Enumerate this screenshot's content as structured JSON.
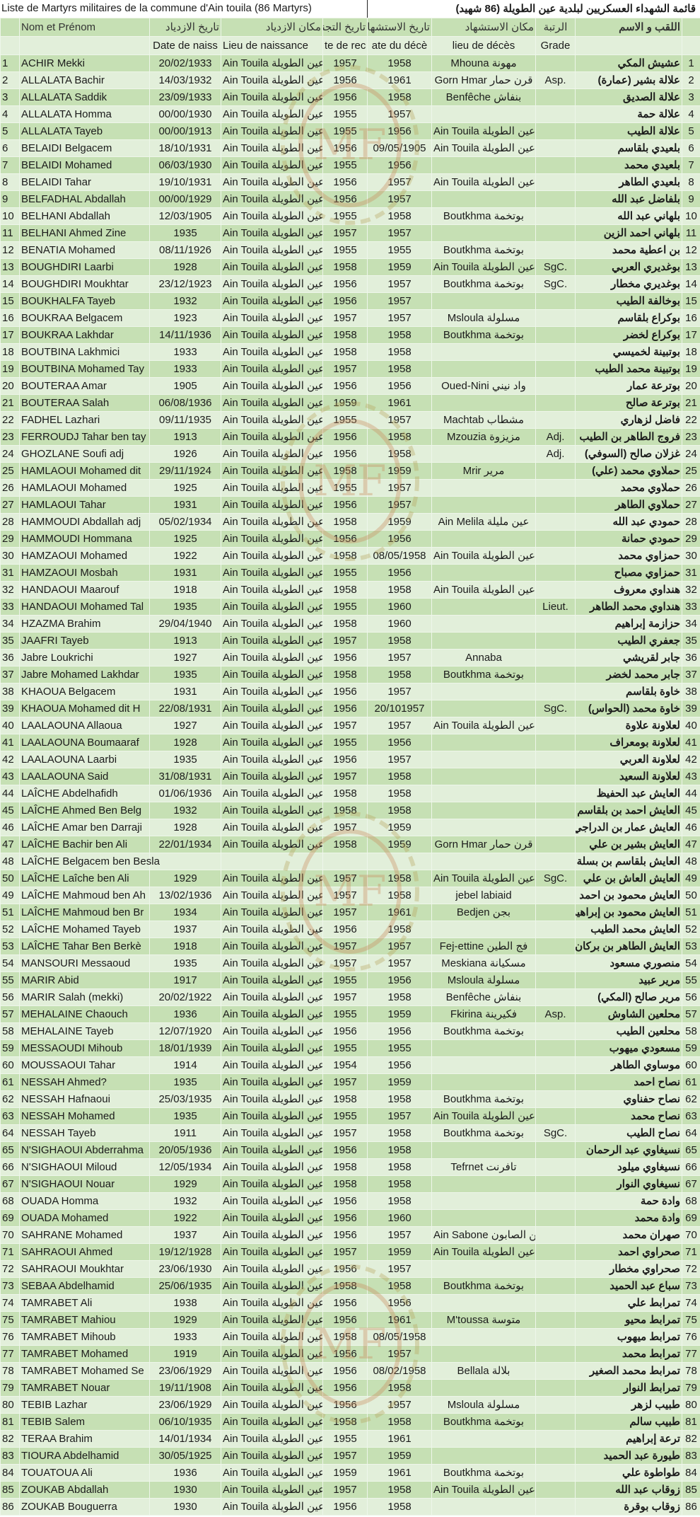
{
  "title": {
    "fr": "Liste de Martyrs militaires de la commune d'Ain touila (86 Martyrs)",
    "ar": "قائمة الشهداء العسكريين لبلدية عين الطويلة (86 شهيد)"
  },
  "header_ar": [
    "",
    "Nom et Prénom",
    "تاريخ الازدياد",
    "مكان الازدياد",
    "تاريخ التجنيد",
    "تاريخ الاستشهاد",
    "مكان الاستشهاد",
    "الرتبة",
    "اللقب و الاسم",
    ""
  ],
  "header_fr": [
    "",
    "",
    "Date de naiss",
    "Lieu de naissance",
    "te de rec",
    "ate du décè",
    "lieu de décès",
    "Grade",
    "",
    ""
  ],
  "colors": {
    "row_dark": "#c6e0b4",
    "row_light": "#e2efda"
  },
  "watermark": "ornamental-circle-logo",
  "rows": [
    [
      "1",
      "ACHIR Mekki",
      "20/02/1933",
      "Ain Touila عين الطويلة",
      "1957",
      "1958",
      "Mhouna مهونة",
      "",
      "عشيش المكي",
      "1"
    ],
    [
      "2",
      "ALLALATA Bachir",
      "14/03/1932",
      "Ain Touila عين الطويلة",
      "1956",
      "1961",
      "Gorn Hmar قرن حمار",
      "Asp.",
      "علالة بشير (عمارة)",
      "2"
    ],
    [
      "3",
      "ALLALATA Saddik",
      "23/09/1933",
      "Ain Touila عين الطويلة",
      "1956",
      "1958",
      "Benfêche بنفاش",
      "",
      "علالة الصديق",
      "3"
    ],
    [
      "4",
      "ALLALATA Homma",
      "00/00/1930",
      "Ain Touila عين الطويلة",
      "1955",
      "1957",
      "",
      "",
      "علالة حمة",
      "4"
    ],
    [
      "5",
      "ALLALATA Tayeb",
      "00/00/1913",
      "Ain Touila عين الطويلة",
      "1955",
      "1956",
      "Ain Touila عين الطويلة",
      "",
      "علالة الطيب",
      "5"
    ],
    [
      "6",
      "BELAIDI Belgacem",
      "18/10/1931",
      "Ain Touila عين الطويلة",
      "1956",
      "09/05/1905",
      "Ain Touila عين الطويلة",
      "",
      "بلعيدي بلقاسم",
      "6"
    ],
    [
      "7",
      "BELAIDI Mohamed",
      "06/03/1930",
      "Ain Touila عين الطويلة",
      "1955",
      "1956",
      "",
      "",
      "بلعيدي محمد",
      "7"
    ],
    [
      "8",
      "BELAIDI Tahar",
      "19/10/1931",
      "Ain Touila عين الطويلة",
      "1956",
      "1957",
      "Ain Touila عين الطويلة",
      "",
      "بلعيدي الطاهر",
      "8"
    ],
    [
      "9",
      "BELFADHAL Abdallah",
      "00/00/1929",
      "Ain Touila عين الطويلة",
      "1956",
      "1957",
      "",
      "",
      "بلفاضل عبد الله",
      "9"
    ],
    [
      "10",
      "BELHANI Abdallah",
      "12/03/1905",
      "Ain Touila عين الطويلة",
      "1955",
      "1958",
      "Boutkhma بوتخمة",
      "",
      "بلهاني عبد الله",
      "10"
    ],
    [
      "11",
      "BELHANI Ahmed Zine",
      "1935",
      "Ain Touila عين الطويلة",
      "1957",
      "1957",
      "",
      "",
      "بلهاني احمد الزين",
      "11"
    ],
    [
      "12",
      "BENATIA Mohamed",
      "08/11/1926",
      "Ain Touila عين الطويلة",
      "1955",
      "1955",
      "Boutkhma بوتخمة",
      "",
      "بن اعطية محمد",
      "12"
    ],
    [
      "13",
      "BOUGHDIRI Laarbi",
      "1928",
      "Ain Touila عين الطويلة",
      "1958",
      "1959",
      "Ain Touila عين الطويلة",
      "SgC.",
      "بوغديري العربي",
      "13"
    ],
    [
      "14",
      "BOUGHDIRI Moukhtar",
      "23/12/1923",
      "Ain Touila عين الطويلة",
      "1956",
      "1957",
      "Boutkhma بوتخمة",
      "SgC.",
      "بوغديري مخطار",
      "14"
    ],
    [
      "15",
      "BOUKHALFA Tayeb",
      "1932",
      "Ain Touila عين الطويلة",
      "1956",
      "1957",
      "",
      "",
      "بوخالفة الطيب",
      "15"
    ],
    [
      "16",
      "BOUKRAA Belgacem",
      "1923",
      "Ain Touila عين الطويلة",
      "1957",
      "1957",
      "Msloula مسلولة",
      "",
      "بوكراع بلقاسم",
      "16"
    ],
    [
      "17",
      "BOUKRAA Lakhdar",
      "14/11/1936",
      "Ain Touila عين الطويلة",
      "1958",
      "1958",
      "Boutkhma بوتخمة",
      "",
      "بوكراع لخضر",
      "17"
    ],
    [
      "18",
      "BOUTBINA Lakhmici",
      "1933",
      "Ain Touila عين الطويلة",
      "1958",
      "1958",
      "",
      "",
      "بوتبينة لخميسي",
      "18"
    ],
    [
      "19",
      "BOUTBINA Mohamed Tay",
      "1933",
      "Ain Touila عين الطويلة",
      "1957",
      "1958",
      "",
      "",
      "بوتبينة محمد الطيب",
      "19"
    ],
    [
      "20",
      "BOUTERAA Amar",
      "1905",
      "Ain Touila عين الطويلة",
      "1956",
      "1956",
      "Oued-Nini واد نيني",
      "",
      "بوترعة عمار",
      "20"
    ],
    [
      "21",
      "BOUTERAA Salah",
      "06/08/1936",
      "Ain Touila عين الطويلة",
      "1959",
      "1961",
      "",
      "",
      "بوترعة صالح",
      "21"
    ],
    [
      "22",
      "FADHEL Lazhari",
      "09/11/1935",
      "Ain Touila عين الطويلة",
      "1955",
      "1957",
      "Machtab مشطاب",
      "",
      "فاضل لزهاري",
      "22"
    ],
    [
      "23",
      "FERROUDJ Tahar ben tay",
      "1913",
      "Ain Touila عين الطويلة",
      "1956",
      "1958",
      "Mzouzia مزيزوة",
      "Adj.",
      "فروج الطاهر بن الطيب",
      "23"
    ],
    [
      "24",
      "GHOZLANE Soufi adj",
      "1926",
      "Ain Touila عين الطويلة",
      "1956",
      "1958",
      "",
      "Adj.",
      "غزلان صالح (السوفي)",
      "24"
    ],
    [
      "25",
      "HAMLAOUI Mohamed dit",
      "29/11/1924",
      "Ain Touila عين الطويلة",
      "1958",
      "1959",
      "Mrir مرير",
      "",
      "حملاوي محمد (علي)",
      "25"
    ],
    [
      "26",
      "HAMLAOUI Mohamed",
      "1925",
      "Ain Touila عين الطويلة",
      "1955",
      "1957",
      "",
      "",
      "حملاوي محمد",
      "26"
    ],
    [
      "27",
      "HAMLAOUI Tahar",
      "1931",
      "Ain Touila عين الطويلة",
      "1956",
      "1957",
      "",
      "",
      "حملاوي الطاهر",
      "27"
    ],
    [
      "28",
      "HAMMOUDI Abdallah adj",
      "05/02/1934",
      "Ain Touila عين الطويلة",
      "1958",
      "1959",
      "Ain Melila عين مليلة",
      "",
      "حمودي عبد الله",
      "28"
    ],
    [
      "29",
      "HAMMOUDI Hommana",
      "1925",
      "Ain Touila عين الطويلة",
      "1956",
      "1956",
      "",
      "",
      "حمودي حمانة",
      "29"
    ],
    [
      "30",
      "HAMZAOUI Mohamed",
      "1922",
      "Ain Touila عين الطويلة",
      "1958",
      "08/05/1958",
      "Ain Touila عين الطويلة",
      "",
      "حمزاوي محمد",
      "30"
    ],
    [
      "31",
      "HAMZAOUI Mosbah",
      "1931",
      "Ain Touila عين الطويلة",
      "1955",
      "1956",
      "",
      "",
      "حمزاوي مصباح",
      "31"
    ],
    [
      "32",
      "HANDAOUI Maarouf",
      "1918",
      "Ain Touila عين الطويلة",
      "1958",
      "1958",
      "Ain Touila عين الطويلة",
      "",
      "هنداوي معروف",
      "32"
    ],
    [
      "33",
      "HANDAOUI Mohamed Tal",
      "1935",
      "Ain Touila عين الطويلة",
      "1955",
      "1960",
      "",
      "Lieut.",
      "هنداوي محمد الطاهر",
      "33"
    ],
    [
      "34",
      "HZAZMA Brahim",
      "29/04/1940",
      "Ain Touila عين الطويلة",
      "1958",
      "1960",
      "",
      "",
      "حزازمة إبراهيم",
      "34"
    ],
    [
      "35",
      "JAAFRI Tayeb",
      "1913",
      "Ain Touila عين الطويلة",
      "1957",
      "1958",
      "",
      "",
      "جعفري الطيب",
      "35"
    ],
    [
      "36",
      "Jabre Loukrichi",
      "1927",
      "Ain Touila عين الطويلة",
      "1956",
      "1957",
      "Annaba",
      "",
      "جابر لقريشي",
      "36"
    ],
    [
      "37",
      "Jabre Mohamed Lakhdar",
      "1935",
      "Ain Touila عين الطويلة",
      "1958",
      "1958",
      "Boutkhma بوتخمة",
      "",
      "جابر محمد لخضر",
      "37"
    ],
    [
      "38",
      "KHAOUA Belgacem",
      "1931",
      "Ain Touila عين الطويلة",
      "1956",
      "1957",
      "",
      "",
      "خاوة بلقاسم",
      "38"
    ],
    [
      "39",
      "KHAOUA Mohamed dit H",
      "22/08/1931",
      "Ain Touila عين الطويلة",
      "1956",
      "20/101957",
      "",
      "SgC.",
      "خاوة محمد (الحواس)",
      "39"
    ],
    [
      "40",
      "LAALAOUNA Allaoua",
      "1927",
      "Ain Touila عين الطويلة",
      "1957",
      "1957",
      "Ain Touila عين الطويلة",
      "",
      "لعلاونة علاوة",
      "40"
    ],
    [
      "41",
      "LAALAOUNA Boumaaraf",
      "1928",
      "Ain Touila عين الطويلة",
      "1955",
      "1956",
      "",
      "",
      "لعلاونة بومعراف",
      "41"
    ],
    [
      "42",
      "LAALAOUNA Laarbi",
      "1935",
      "Ain Touila عين الطويلة",
      "1956",
      "1957",
      "",
      "",
      "لعلاونة العربي",
      "42"
    ],
    [
      "43",
      "LAALAOUNA Said",
      "31/08/1931",
      "Ain Touila عين الطويلة",
      "1957",
      "1958",
      "",
      "",
      "لعلاونة السعيد",
      "43"
    ],
    [
      "44",
      "LAÎCHE Abdelhafidh",
      "01/06/1936",
      "Ain Touila عين الطويلة",
      "1958",
      "1958",
      "",
      "",
      "العايش عبد الحفيظ",
      "44"
    ],
    [
      "45",
      "LAÎCHE Ahmed Ben Belg",
      "1932",
      "Ain Touila عين الطويلة",
      "1958",
      "1958",
      "",
      "",
      "العايش احمد بن بلقاسم",
      "45"
    ],
    [
      "46",
      "LAÎCHE Amar ben Darraji",
      "1928",
      "Ain Touila عين الطويلة",
      "1957",
      "1959",
      "",
      "",
      "العايش عمار بن الدراجي",
      "46"
    ],
    [
      "47",
      "LAÎCHE Bachir ben Ali",
      "22/01/1934",
      "Ain Touila عين الطويلة",
      "1958",
      "1959",
      "Gorn Hmar قرن حمار",
      "",
      "العايش بشير بن علي",
      "47"
    ],
    [
      "48",
      "LAÎCHE Belgacem ben Besla",
      "",
      "",
      "",
      "",
      "",
      "",
      "العايش بلقاسم بن بسلة",
      "48"
    ],
    [
      "50",
      "LAÎCHE Laîche ben Ali",
      "1929",
      "Ain Touila عين الطويلة",
      "1957",
      "1958",
      "Ain Touila عين الطويلة",
      "SgC.",
      "العايش العاش بن علي",
      "49"
    ],
    [
      "49",
      "LAÎCHE Mahmoud ben Ah",
      "13/02/1936",
      "Ain Touila عين الطويلة",
      "1957",
      "1958",
      "jebel labiaid",
      "",
      "العايش محمود بن احمد",
      "50"
    ],
    [
      "51",
      "LAÎCHE Mahmoud ben Br",
      "1934",
      "Ain Touila عين الطويلة",
      "1957",
      "1961",
      "Bedjen بجن",
      "",
      "العايش محمود بن إبراهيم",
      "51"
    ],
    [
      "52",
      "LAÎCHE Mohamed Tayeb",
      "1937",
      "Ain Touila عين الطويلة",
      "1956",
      "1958",
      "",
      "",
      "العايش محمد الطيب",
      "52"
    ],
    [
      "53",
      "LAÎCHE Tahar Ben Berkè",
      "1918",
      "Ain Touila عين الطويلة",
      "1957",
      "1957",
      "Fej-ettine فج الطين",
      "",
      "العايش الطاهر بن بركان",
      "53"
    ],
    [
      "54",
      "MANSOURI Messaoud",
      "1935",
      "Ain Touila عين الطويلة",
      "1957",
      "1957",
      "Meskiana مسكيانة",
      "",
      "منصوري مسعود",
      "54"
    ],
    [
      "55",
      "MARIR Abid",
      "1917",
      "Ain Touila عين الطويلة",
      "1955",
      "1956",
      "Msloula مسلولة",
      "",
      "مرير عبيد",
      "55"
    ],
    [
      "56",
      "MARIR Salah (mekki)",
      "20/02/1922",
      "Ain Touila عين الطويلة",
      "1957",
      "1958",
      "Benfêche بنفاش",
      "",
      "مرير صالح (المكي)",
      "56"
    ],
    [
      "57",
      "MEHALAINE Chaouch",
      "1936",
      "Ain Touila عين الطويلة",
      "1955",
      "1959",
      "Fkirina فكيرينة",
      "Asp.",
      "محلعين الشاوش",
      "57"
    ],
    [
      "58",
      "MEHALAINE Tayeb",
      "12/07/1920",
      "Ain Touila عين الطويلة",
      "1956",
      "1956",
      "Boutkhma بوتخمة",
      "",
      "محلعين الطيب",
      "58"
    ],
    [
      "59",
      "MESSAOUDI Mihoub",
      "18/01/1939",
      "Ain Touila عين الطويلة",
      "1955",
      "1955",
      "",
      "",
      "مسعودي ميهوب",
      "59"
    ],
    [
      "60",
      "MOUSSAOUI Tahar",
      "1914",
      "Ain Touila عين الطويلة",
      "1954",
      "1956",
      "",
      "",
      "موساوي الطاهر",
      "60"
    ],
    [
      "61",
      "NESSAH Ahmed?",
      "1935",
      "Ain Touila عين الطويلة",
      "1957",
      "1959",
      "",
      "",
      "نصاح احمد",
      "61"
    ],
    [
      "62",
      "NESSAH Hafnaoui",
      "25/03/1935",
      "Ain Touila عين الطويلة",
      "1958",
      "1958",
      "Boutkhma بوتخمة",
      "",
      "نصاح حفناوي",
      "62"
    ],
    [
      "63",
      "NESSAH Mohamed",
      "1935",
      "Ain Touila عين الطويلة",
      "1955",
      "1957",
      "Ain Touila عين الطويلة",
      "",
      "نصاح محمد",
      "63"
    ],
    [
      "64",
      "NESSAH Tayeb",
      "1911",
      "Ain Touila عين الطويلة",
      "1957",
      "1958",
      "Boutkhma بوتخمة",
      "SgC.",
      "نصاح الطيب",
      "64"
    ],
    [
      "65",
      "N'SIGHAOUI Abderrahma",
      "20/05/1936",
      "Ain Touila عين الطويلة",
      "1956",
      "1958",
      "",
      "",
      "نسيغاوي عبد الرحمان",
      "65"
    ],
    [
      "66",
      "N'SIGHAOUI Miloud",
      "12/05/1934",
      "Ain Touila عين الطويلة",
      "1958",
      "1958",
      "Tefrnet تافرنت",
      "",
      "نسيغاوي ميلود",
      "66"
    ],
    [
      "67",
      "N'SIGHAOUI Nouar",
      "1929",
      "Ain Touila عين الطويلة",
      "1958",
      "1958",
      "",
      "",
      "نسيغاوي النوار",
      "67"
    ],
    [
      "68",
      "OUADA Homma",
      "1932",
      "Ain Touila عين الطويلة",
      "1956",
      "1958",
      "",
      "",
      "وادة حمة",
      "68"
    ],
    [
      "69",
      "OUADA Mohamed",
      "1922",
      "Ain Touila عين الطويلة",
      "1956",
      "1960",
      "",
      "",
      "وادة محمد",
      "69"
    ],
    [
      "70",
      "SAHRANE Mohamed",
      "1937",
      "Ain Touila عين الطويلة",
      "1956",
      "1957",
      "Ain Sabone عين الصابون",
      "",
      "صهران محمد",
      "70"
    ],
    [
      "71",
      "SAHRAOUI Ahmed",
      "19/12/1928",
      "Ain Touila عين الطويلة",
      "1957",
      "1959",
      "Ain Touila عين الطويلة",
      "",
      "صحراوي احمد",
      "71"
    ],
    [
      "72",
      "SAHRAOUI Moukhtar",
      "23/06/1930",
      "Ain Touila عين الطويلة",
      "1956",
      "1957",
      "",
      "",
      "صحراوي مخطار",
      "72"
    ],
    [
      "73",
      "SEBAA Abdelhamid",
      "25/06/1935",
      "Ain Touila عين الطويلة",
      "1958",
      "1958",
      "Boutkhma بوتخمة",
      "",
      "سباع عبد الحميد",
      "73"
    ],
    [
      "74",
      "TAMRABET Ali",
      "1938",
      "Ain Touila عين الطويلة",
      "1956",
      "1956",
      "",
      "",
      "تمرابط علي",
      "74"
    ],
    [
      "75",
      "TAMRABET Mahiou",
      "1929",
      "Ain Touila عين الطويلة",
      "1956",
      "1961",
      "M'toussa متوسة",
      "",
      "تمرابط محيو",
      "75"
    ],
    [
      "76",
      "TAMRABET Mihoub",
      "1933",
      "Ain Touila عين الطويلة",
      "1958",
      "08/05/1958",
      "",
      "",
      "تمرابط ميهوب",
      "76"
    ],
    [
      "77",
      "TAMRABET Mohamed",
      "1919",
      "Ain Touila عين الطويلة",
      "1956",
      "1957",
      "",
      "",
      "تمرابط محمد",
      "77"
    ],
    [
      "78",
      "TAMRABET Mohamed Se",
      "23/06/1929",
      "Ain Touila عين الطويلة",
      "1956",
      "08/02/1958",
      "Bellala بلالة",
      "",
      "تمرابط محمد الصغير",
      "78"
    ],
    [
      "79",
      "TAMRABET Nouar",
      "19/11/1908",
      "Ain Touila عين الطويلة",
      "1956",
      "1958",
      "",
      "",
      "تمرابط النوار",
      "79"
    ],
    [
      "80",
      "TEBIB Lazhar",
      "23/06/1929",
      "Ain Touila عين الطويلة",
      "1956",
      "1957",
      "Msloula مسلولة",
      "",
      "طبيب لزهر",
      "80"
    ],
    [
      "81",
      "TEBIB Salem",
      "06/10/1935",
      "Ain Touila عين الطويلة",
      "1958",
      "1958",
      "Boutkhma بوتخمة",
      "",
      "طبيب سالم",
      "81"
    ],
    [
      "82",
      "TERAA Brahim",
      "14/01/1934",
      "Ain Touila عين الطويلة",
      "1955",
      "1961",
      "",
      "",
      "ترعة إبراهيم",
      "82"
    ],
    [
      "83",
      "TIOURA Abdelhamid",
      "30/05/1925",
      "Ain Touila عين الطويلة",
      "1957",
      "1959",
      "",
      "",
      "طيورة عبد الحميد",
      "83"
    ],
    [
      "84",
      "TOUATOUA Ali",
      "1936",
      "Ain Touila عين الطويلة",
      "1959",
      "1961",
      "Boutkhma بوتخمة",
      "",
      "طواطوة علي",
      "84"
    ],
    [
      "85",
      "ZOUKAB Abdallah",
      "1930",
      "Ain Touila عين الطويلة",
      "1957",
      "1958",
      "Ain Touila عين الطويلة",
      "",
      "زوقاب عبد الله",
      "85"
    ],
    [
      "86",
      "ZOUKAB Bouguerra",
      "1930",
      "Ain Touila عين الطويلة",
      "1956",
      "1958",
      "",
      "",
      "زوقاب بوقرة",
      "86"
    ]
  ]
}
